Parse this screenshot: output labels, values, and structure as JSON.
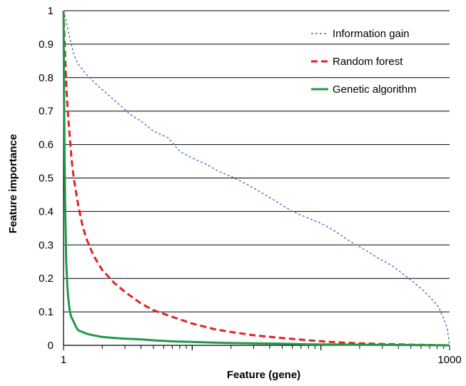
{
  "chart_data": {
    "type": "line",
    "title": "",
    "xlabel": "Feature (gene)",
    "ylabel": "Feature importance",
    "x_scale": "log",
    "xlim": [
      1,
      1000
    ],
    "ylim": [
      0,
      1
    ],
    "x_tick_labels": [
      "1",
      "1000"
    ],
    "y_tick_labels": [
      "0",
      "0.1",
      "0.2",
      "0.3",
      "0.4",
      "0.5",
      "0.6",
      "0.7",
      "0.8",
      "0.9",
      "1"
    ],
    "grid": "horizontal",
    "legend_position": "top-right",
    "series": [
      {
        "name": "Information gain",
        "color": "#4472c4",
        "style": "dotted",
        "x": [
          1,
          1.05,
          1.1,
          1.2,
          1.3,
          1.5,
          1.8,
          2.2,
          2.7,
          3.3,
          4,
          5,
          6.5,
          8,
          10,
          13,
          16,
          20,
          27,
          35,
          45,
          60,
          80,
          100,
          130,
          170,
          220,
          280,
          350,
          430,
          520,
          620,
          720,
          820,
          900,
          960,
          1000
        ],
        "y": [
          1.0,
          0.97,
          0.93,
          0.87,
          0.84,
          0.81,
          0.78,
          0.75,
          0.72,
          0.69,
          0.67,
          0.64,
          0.62,
          0.58,
          0.56,
          0.54,
          0.52,
          0.505,
          0.48,
          0.455,
          0.43,
          0.4,
          0.38,
          0.365,
          0.34,
          0.31,
          0.285,
          0.26,
          0.24,
          0.215,
          0.19,
          0.165,
          0.14,
          0.115,
          0.08,
          0.05,
          0.0
        ]
      },
      {
        "name": "Random forest",
        "color": "#e32226",
        "style": "dashed",
        "x": [
          1,
          1.02,
          1.05,
          1.08,
          1.12,
          1.16,
          1.2,
          1.3,
          1.4,
          1.5,
          1.7,
          2,
          2.5,
          3,
          4,
          5,
          7,
          10,
          15,
          20,
          30,
          50,
          80,
          120,
          200,
          300,
          500,
          700,
          1000
        ],
        "y": [
          1.0,
          0.9,
          0.78,
          0.7,
          0.62,
          0.55,
          0.5,
          0.42,
          0.36,
          0.32,
          0.27,
          0.225,
          0.185,
          0.16,
          0.125,
          0.105,
          0.085,
          0.065,
          0.048,
          0.04,
          0.03,
          0.022,
          0.015,
          0.01,
          0.006,
          0.004,
          0.002,
          0.001,
          0.0
        ]
      },
      {
        "name": "Genetic algorithm",
        "color": "#1e9a48",
        "style": "solid",
        "x": [
          1,
          1.01,
          1.02,
          1.03,
          1.04,
          1.05,
          1.07,
          1.09,
          1.12,
          1.15,
          1.2,
          1.25,
          1.3,
          1.4,
          1.5,
          1.7,
          2,
          2.5,
          3,
          4,
          5,
          7,
          10,
          15,
          20,
          30,
          50,
          80,
          1000
        ],
        "y": [
          1.0,
          0.75,
          0.55,
          0.42,
          0.33,
          0.25,
          0.18,
          0.14,
          0.1,
          0.085,
          0.07,
          0.055,
          0.045,
          0.04,
          0.035,
          0.03,
          0.025,
          0.022,
          0.02,
          0.018,
          0.015,
          0.012,
          0.01,
          0.008,
          0.007,
          0.006,
          0.005,
          0.003,
          0.0
        ]
      }
    ]
  }
}
